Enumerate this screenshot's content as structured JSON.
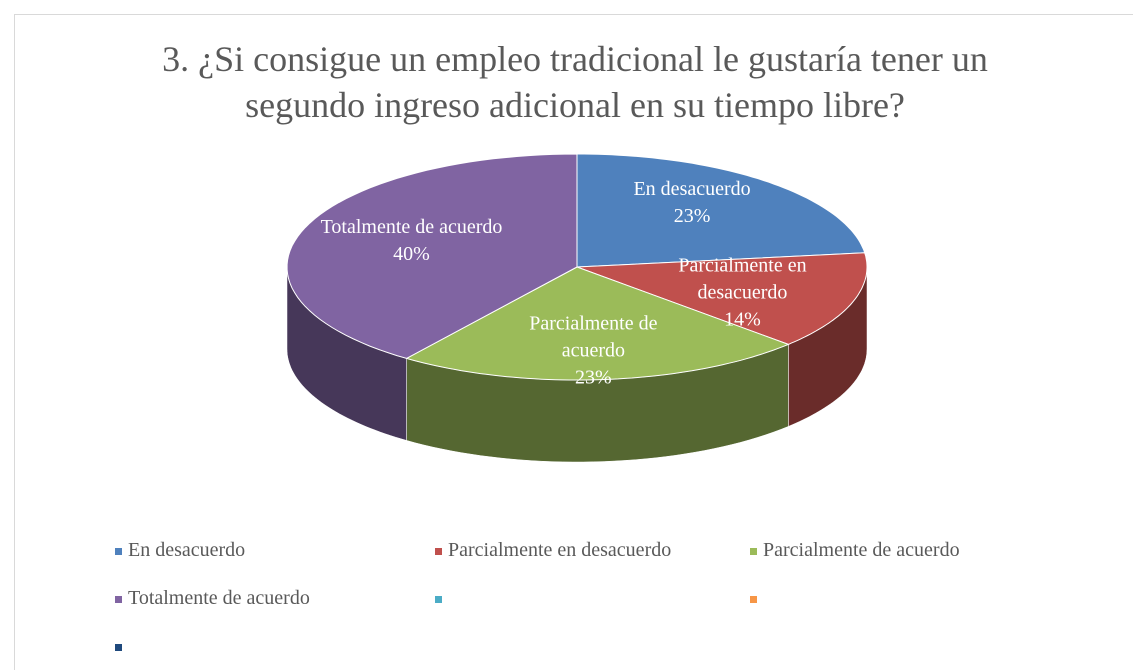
{
  "chart_data": {
    "type": "pie3d",
    "title": "3. ¿Si consigue un empleo tradicional le gustaría tener un segundo ingreso adicional en su tiempo libre?",
    "categories": [
      "En desacuerdo",
      "Parcialmente en desacuerdo",
      "Parcialmente de acuerdo",
      "Totalmente de acuerdo",
      null,
      null,
      null
    ],
    "values": [
      23,
      14,
      23,
      40,
      null,
      null,
      null
    ],
    "value_labels": [
      "23%",
      "14%",
      "23%",
      "40%",
      null,
      null,
      null
    ],
    "colors": [
      "#4f81bd",
      "#c0504d",
      "#9bbb59",
      "#8064a2",
      "#4bacc6",
      "#f79646",
      "#1f497d"
    ],
    "legend": "bottom"
  }
}
